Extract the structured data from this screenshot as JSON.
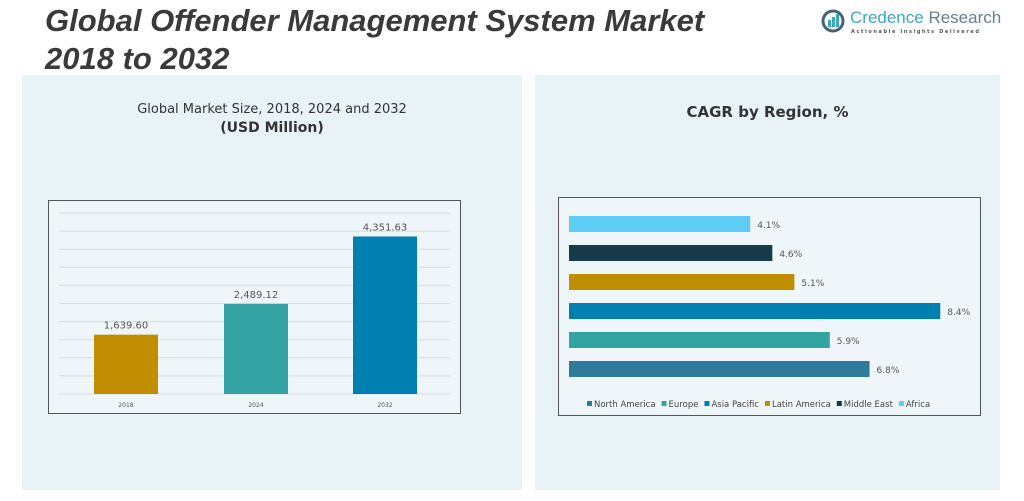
{
  "title_line1": "Global Offender Management System Market",
  "title_line2": "2018 to 2032",
  "logo": {
    "name_a": "Credence",
    "name_b": " Research",
    "tagline": "Actionable Insights Delivered"
  },
  "colors": {
    "panel": "#e8f3f8",
    "gold": "#c08e00",
    "teal": "#33a3a3",
    "blue": "#0080b0"
  },
  "chart_data": [
    {
      "type": "bar",
      "title": "Global Market Size, 2018, 2024 and 2032",
      "subtitle": "(USD Million)",
      "categories": [
        "2018",
        "2024",
        "2032"
      ],
      "values": [
        1639.6,
        2489.12,
        4351.63
      ],
      "labels": [
        "1,639.60",
        "2,489.12",
        "4,351.63"
      ],
      "colors": [
        "#c08e00",
        "#33a3a3",
        "#0080b0"
      ],
      "ylim": [
        0,
        5000
      ],
      "grid": true
    },
    {
      "type": "bar",
      "orientation": "horizontal",
      "title": "CAGR by Region, %",
      "categories": [
        "North America",
        "Europe",
        "Asia Pacific",
        "Latin America",
        "Middle East",
        "Africa"
      ],
      "values": [
        6.8,
        5.9,
        8.4,
        5.1,
        4.6,
        4.1
      ],
      "labels": [
        "6.8%",
        "5.9%",
        "8.4%",
        "5.1%",
        "4.6%",
        "4.1%"
      ],
      "colors": [
        "#2f7a9a",
        "#33a3a3",
        "#0080b0",
        "#c08e00",
        "#173a4a",
        "#5dcdf5"
      ],
      "xlim": [
        0,
        9
      ],
      "legend": "bottom",
      "grid": false
    }
  ]
}
